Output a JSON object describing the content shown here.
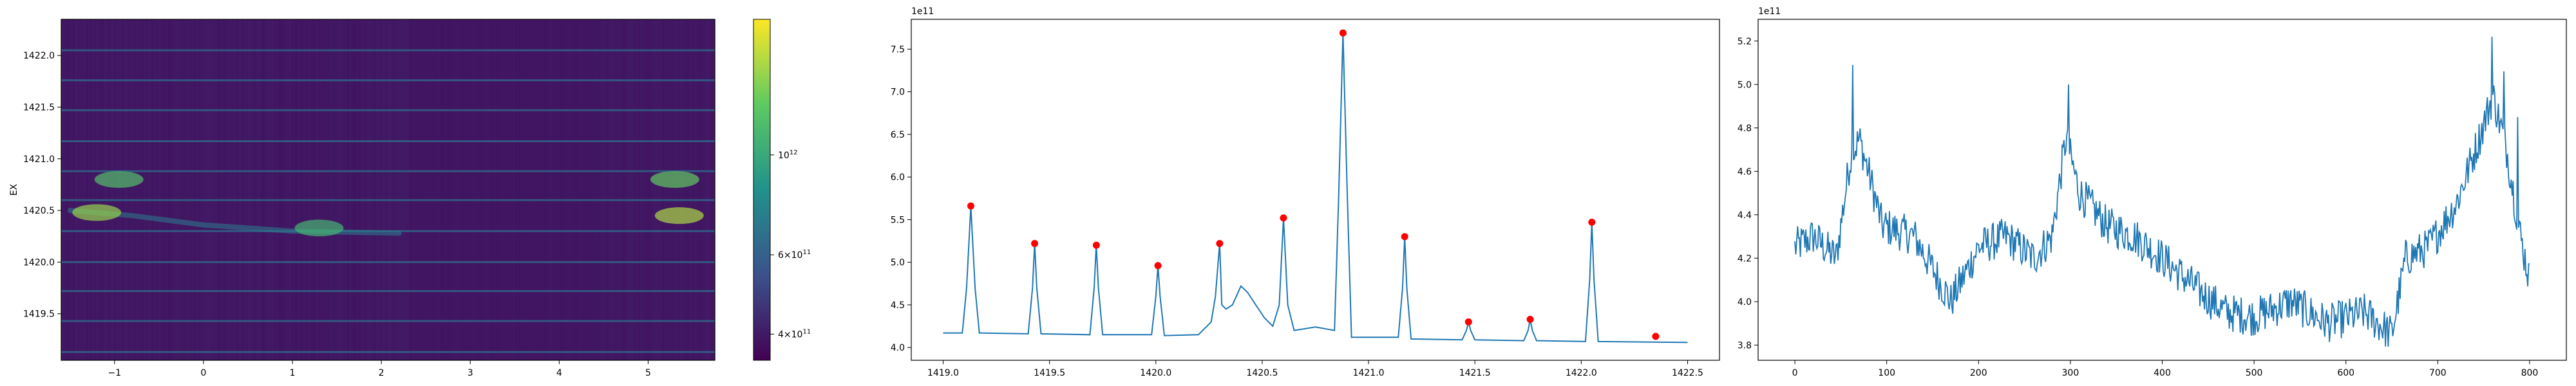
{
  "chart_data": [
    {
      "type": "heatmap",
      "ylabel": "EX",
      "xlim": [
        -1.6,
        5.75
      ],
      "ylim": [
        1419.05,
        1422.35
      ],
      "xticks": [
        -1,
        0,
        1,
        2,
        3,
        4,
        5
      ],
      "yticks": [
        1419.5,
        1420.0,
        1420.5,
        1421.0,
        1421.5,
        1422.0
      ],
      "ytick_labels": [
        "1419.5",
        "1420.0",
        "1420.5",
        "1421.0",
        "1421.5",
        "1422.0"
      ],
      "colormap": "viridis",
      "colorbar": {
        "scale": "log",
        "ticks": [
          {
            "base": "4",
            "exp": "11",
            "value": 400000000000
          },
          {
            "base": "6",
            "exp": "11",
            "value": 600000000000
          },
          {
            "base": "",
            "exp": "12",
            "value": 1000000000000
          }
        ],
        "range": [
          350000000000,
          2000000000000
        ]
      },
      "background_value": 390000000000,
      "bright_rows": [
        1419.13,
        1419.43,
        1419.72,
        1420.0,
        1420.3,
        1420.6,
        1420.88,
        1421.17,
        1421.47,
        1421.76,
        1422.05
      ],
      "features": [
        {
          "x": -0.95,
          "y": 1420.8,
          "value": 1200000000000
        },
        {
          "x": -1.2,
          "y": 1420.48,
          "value": 1500000000000
        },
        {
          "x": 1.3,
          "y": 1420.33,
          "value": 1100000000000
        },
        {
          "x": 5.35,
          "y": 1420.45,
          "value": 1600000000000
        },
        {
          "x": 5.3,
          "y": 1420.8,
          "value": 1300000000000
        }
      ]
    },
    {
      "type": "line",
      "offset_label": "1e11",
      "xlim": [
        1418.85,
        1422.65
      ],
      "ylim": [
        3.85,
        7.85
      ],
      "xticks": [
        1419.0,
        1419.5,
        1420.0,
        1420.5,
        1421.0,
        1421.5,
        1422.0,
        1422.5
      ],
      "xtick_labels": [
        "1419.0",
        "1419.5",
        "1420.0",
        "1420.5",
        "1421.0",
        "1421.5",
        "1422.0",
        "1422.5"
      ],
      "yticks": [
        4.0,
        4.5,
        5.0,
        5.5,
        6.0,
        6.5,
        7.0,
        7.5
      ],
      "ytick_labels": [
        "4.0",
        "4.5",
        "5.0",
        "5.5",
        "6.0",
        "6.5",
        "7.0",
        "7.5"
      ],
      "line_color": "#1f77b4",
      "marker_color": "#ff0000",
      "x": [
        1419.0,
        1419.09,
        1419.11,
        1419.13,
        1419.15,
        1419.17,
        1419.4,
        1419.42,
        1419.43,
        1419.44,
        1419.46,
        1419.69,
        1419.71,
        1419.72,
        1419.73,
        1419.75,
        1419.98,
        1420.0,
        1420.01,
        1420.02,
        1420.04,
        1420.2,
        1420.26,
        1420.28,
        1420.3,
        1420.31,
        1420.33,
        1420.36,
        1420.4,
        1420.43,
        1420.47,
        1420.51,
        1420.55,
        1420.58,
        1420.6,
        1420.62,
        1420.65,
        1420.75,
        1420.84,
        1420.86,
        1420.88,
        1420.9,
        1420.92,
        1421.14,
        1421.16,
        1421.17,
        1421.18,
        1421.2,
        1421.44,
        1421.46,
        1421.47,
        1421.48,
        1421.5,
        1421.73,
        1421.75,
        1421.76,
        1421.77,
        1421.79,
        1422.02,
        1422.04,
        1422.05,
        1422.06,
        1422.08,
        1422.5
      ],
      "y": [
        4.17,
        4.17,
        4.7,
        5.66,
        4.7,
        4.17,
        4.16,
        4.7,
        5.22,
        4.7,
        4.16,
        4.15,
        4.7,
        5.2,
        4.7,
        4.15,
        4.15,
        4.6,
        4.96,
        4.6,
        4.14,
        4.15,
        4.3,
        4.6,
        5.22,
        4.5,
        4.45,
        4.5,
        4.72,
        4.65,
        4.5,
        4.35,
        4.25,
        4.5,
        5.52,
        4.5,
        4.2,
        4.24,
        4.2,
        5.8,
        7.69,
        5.8,
        4.12,
        4.12,
        4.7,
        5.3,
        4.7,
        4.1,
        4.09,
        4.2,
        4.3,
        4.2,
        4.09,
        4.08,
        4.2,
        4.33,
        4.2,
        4.08,
        4.07,
        4.8,
        5.47,
        4.8,
        4.07,
        4.06
      ],
      "markers": [
        {
          "x": 1419.13,
          "y": 5.66
        },
        {
          "x": 1419.43,
          "y": 5.22
        },
        {
          "x": 1419.72,
          "y": 5.2
        },
        {
          "x": 1420.01,
          "y": 4.96
        },
        {
          "x": 1420.3,
          "y": 5.22
        },
        {
          "x": 1420.6,
          "y": 5.52
        },
        {
          "x": 1420.88,
          "y": 7.69
        },
        {
          "x": 1421.17,
          "y": 5.3
        },
        {
          "x": 1421.47,
          "y": 4.3
        },
        {
          "x": 1421.76,
          "y": 4.33
        },
        {
          "x": 1422.05,
          "y": 5.47
        },
        {
          "x": 1422.35,
          "y": 4.13
        }
      ]
    },
    {
      "type": "line",
      "offset_label": "1e11",
      "xlim": [
        -40,
        840
      ],
      "ylim": [
        3.73,
        5.3
      ],
      "xticks": [
        0,
        100,
        200,
        300,
        400,
        500,
        600,
        700,
        800
      ],
      "xtick_labels": [
        "0",
        "100",
        "200",
        "300",
        "400",
        "500",
        "600",
        "700",
        "800"
      ],
      "yticks": [
        3.8,
        4.0,
        4.2,
        4.4,
        4.6,
        4.8,
        5.0,
        5.2
      ],
      "ytick_labels": [
        "3.8",
        "4.0",
        "4.2",
        "4.4",
        "4.6",
        "4.8",
        "5.0",
        "5.2"
      ],
      "line_color": "#1f77b4",
      "n_points": 800,
      "anchors": [
        [
          0,
          4.25
        ],
        [
          20,
          4.3
        ],
        [
          45,
          4.2
        ],
        [
          60,
          4.65
        ],
        [
          70,
          4.75
        ],
        [
          80,
          4.6
        ],
        [
          95,
          4.35
        ],
        [
          130,
          4.3
        ],
        [
          150,
          4.15
        ],
        [
          170,
          4.0
        ],
        [
          200,
          4.25
        ],
        [
          230,
          4.3
        ],
        [
          260,
          4.2
        ],
        [
          280,
          4.3
        ],
        [
          295,
          4.75
        ],
        [
          310,
          4.5
        ],
        [
          340,
          4.35
        ],
        [
          370,
          4.3
        ],
        [
          400,
          4.2
        ],
        [
          440,
          4.05
        ],
        [
          470,
          3.95
        ],
        [
          500,
          3.93
        ],
        [
          540,
          4.0
        ],
        [
          580,
          3.9
        ],
        [
          620,
          3.95
        ],
        [
          650,
          3.85
        ],
        [
          665,
          4.2
        ],
        [
          690,
          4.25
        ],
        [
          720,
          4.45
        ],
        [
          745,
          4.75
        ],
        [
          760,
          4.95
        ],
        [
          775,
          4.7
        ],
        [
          790,
          4.3
        ],
        [
          800,
          4.1
        ]
      ],
      "noise_amplitude": 0.09,
      "spikes": [
        [
          63,
          5.09
        ],
        [
          298,
          5.0
        ],
        [
          759,
          5.22
        ],
        [
          772,
          5.06
        ],
        [
          787,
          4.85
        ]
      ]
    }
  ]
}
